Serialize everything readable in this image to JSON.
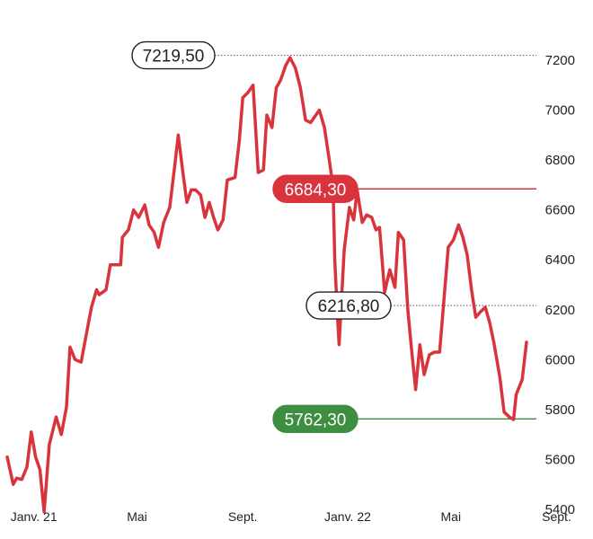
{
  "chart_data": {
    "type": "line",
    "title": "",
    "xlabel": "",
    "ylabel": "",
    "ylim": [
      5400,
      7300
    ],
    "y_ticks": [
      5400,
      5600,
      5800,
      6000,
      6200,
      6400,
      6600,
      6800,
      7000,
      7200
    ],
    "x_labels": [
      {
        "label": "Janv. 21",
        "at": "2021-01-01"
      },
      {
        "label": "Mai",
        "at": "2021-05-01"
      },
      {
        "label": "Sept.",
        "at": "2021-09-01"
      },
      {
        "label": "Janv. 22",
        "at": "2022-01-01"
      },
      {
        "label": "Mai",
        "at": "2022-05-01"
      },
      {
        "label": "Sept.",
        "at": "2022-09-01"
      }
    ],
    "x_range": [
      "2020-12-01",
      "2022-10-20"
    ],
    "series": [
      {
        "color": "#d9343c",
        "points": [
          [
            "2020-12-01",
            5610
          ],
          [
            "2020-12-08",
            5500
          ],
          [
            "2020-12-12",
            5525
          ],
          [
            "2020-12-18",
            5520
          ],
          [
            "2020-12-24",
            5570
          ],
          [
            "2020-12-29",
            5710
          ],
          [
            "2021-01-03",
            5610
          ],
          [
            "2021-01-08",
            5560
          ],
          [
            "2021-01-13",
            5390
          ],
          [
            "2021-01-19",
            5660
          ],
          [
            "2021-01-27",
            5770
          ],
          [
            "2021-02-02",
            5700
          ],
          [
            "2021-02-08",
            5810
          ],
          [
            "2021-02-12",
            6050
          ],
          [
            "2021-02-18",
            6000
          ],
          [
            "2021-02-25",
            5990
          ],
          [
            "2021-03-03",
            6100
          ],
          [
            "2021-03-09",
            6210
          ],
          [
            "2021-03-15",
            6280
          ],
          [
            "2021-03-18",
            6260
          ],
          [
            "2021-03-26",
            6280
          ],
          [
            "2021-03-31",
            6380
          ],
          [
            "2021-04-12",
            6380
          ],
          [
            "2021-04-14",
            6490
          ],
          [
            "2021-04-21",
            6520
          ],
          [
            "2021-04-27",
            6600
          ],
          [
            "2021-05-03",
            6570
          ],
          [
            "2021-05-10",
            6620
          ],
          [
            "2021-05-15",
            6540
          ],
          [
            "2021-05-21",
            6510
          ],
          [
            "2021-05-26",
            6450
          ],
          [
            "2021-06-01",
            6550
          ],
          [
            "2021-06-08",
            6610
          ],
          [
            "2021-06-14",
            6780
          ],
          [
            "2021-06-18",
            6900
          ],
          [
            "2021-06-23",
            6760
          ],
          [
            "2021-06-28",
            6630
          ],
          [
            "2021-07-03",
            6680
          ],
          [
            "2021-07-08",
            6680
          ],
          [
            "2021-07-14",
            6660
          ],
          [
            "2021-07-19",
            6570
          ],
          [
            "2021-07-24",
            6630
          ],
          [
            "2021-07-29",
            6570
          ],
          [
            "2021-08-03",
            6520
          ],
          [
            "2021-08-09",
            6560
          ],
          [
            "2021-08-14",
            6720
          ],
          [
            "2021-08-23",
            6730
          ],
          [
            "2021-08-28",
            6880
          ],
          [
            "2021-09-01",
            7050
          ],
          [
            "2021-09-07",
            7070
          ],
          [
            "2021-09-13",
            7100
          ],
          [
            "2021-09-19",
            6750
          ],
          [
            "2021-09-25",
            6760
          ],
          [
            "2021-09-29",
            6980
          ],
          [
            "2021-10-05",
            6930
          ],
          [
            "2021-10-10",
            7090
          ],
          [
            "2021-10-15",
            7120
          ],
          [
            "2021-10-21",
            7180
          ],
          [
            "2021-10-26",
            7210
          ],
          [
            "2021-11-01",
            7170
          ],
          [
            "2021-11-07",
            7090
          ],
          [
            "2021-11-13",
            6960
          ],
          [
            "2021-11-19",
            6950
          ],
          [
            "2021-11-23",
            6970
          ],
          [
            "2021-11-29",
            7000
          ],
          [
            "2021-12-05",
            6930
          ],
          [
            "2021-12-11",
            6790
          ],
          [
            "2021-12-15",
            6690
          ],
          [
            "2021-12-17",
            6400
          ],
          [
            "2021-12-20",
            6180
          ],
          [
            "2021-12-22",
            6060
          ],
          [
            "2021-12-28",
            6440
          ],
          [
            "2022-01-03",
            6610
          ],
          [
            "2022-01-08",
            6560
          ],
          [
            "2022-01-12",
            6680
          ],
          [
            "2022-01-18",
            6550
          ],
          [
            "2022-01-23",
            6580
          ],
          [
            "2022-01-29",
            6570
          ],
          [
            "2022-02-03",
            6520
          ],
          [
            "2022-02-07",
            6530
          ],
          [
            "2022-02-13",
            6270
          ],
          [
            "2022-02-19",
            6360
          ],
          [
            "2022-02-25",
            6290
          ],
          [
            "2022-03-01",
            6510
          ],
          [
            "2022-03-07",
            6480
          ],
          [
            "2022-03-12",
            6200
          ],
          [
            "2022-03-16",
            6050
          ],
          [
            "2022-03-21",
            5880
          ],
          [
            "2022-03-26",
            6060
          ],
          [
            "2022-03-31",
            5940
          ],
          [
            "2022-04-06",
            6020
          ],
          [
            "2022-04-12",
            6030
          ],
          [
            "2022-04-18",
            6030
          ],
          [
            "2022-04-23",
            6240
          ],
          [
            "2022-04-28",
            6450
          ],
          [
            "2022-05-04",
            6480
          ],
          [
            "2022-05-10",
            6540
          ],
          [
            "2022-05-15",
            6490
          ],
          [
            "2022-05-20",
            6420
          ],
          [
            "2022-05-25",
            6280
          ],
          [
            "2022-05-30",
            6170
          ],
          [
            "2022-06-04",
            6190
          ],
          [
            "2022-06-10",
            6210
          ],
          [
            "2022-06-15",
            6150
          ],
          [
            "2022-06-20",
            6070
          ],
          [
            "2022-06-27",
            5930
          ],
          [
            "2022-07-02",
            5790
          ],
          [
            "2022-07-08",
            5770
          ],
          [
            "2022-07-13",
            5760
          ],
          [
            "2022-07-16",
            5860
          ],
          [
            "2022-07-23",
            5920
          ],
          [
            "2022-07-28",
            6070
          ]
        ]
      }
    ],
    "reference_lines": [
      {
        "value": 7219.5,
        "label": "7219,50",
        "style": "dotted",
        "color": "#555555",
        "callout": "outline"
      },
      {
        "value": 6684.3,
        "label": "6684,30",
        "style": "solid",
        "color": "#d9343c",
        "callout": "filled"
      },
      {
        "value": 6216.8,
        "label": "6216,80",
        "style": "dotted",
        "color": "#555555",
        "callout": "outline"
      },
      {
        "value": 5762.3,
        "label": "5762,30",
        "style": "solid",
        "color": "#3e8e41",
        "callout": "filled"
      }
    ],
    "grid": false,
    "legend": "none",
    "colors": {
      "line": "#d9343c",
      "high_low_outline": "#222222",
      "red_callout": "#d9343c",
      "green_callout": "#3e8e41",
      "axis_text": "#222222"
    }
  }
}
